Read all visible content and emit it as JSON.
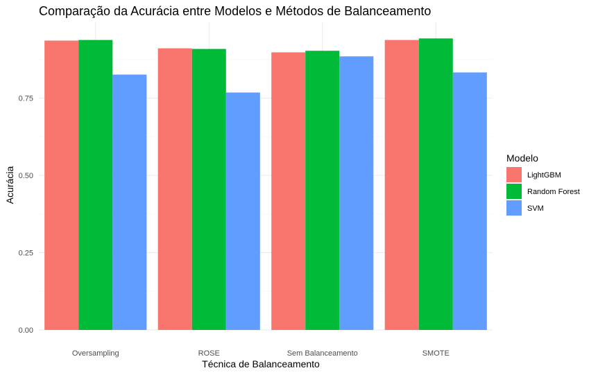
{
  "chart_data": {
    "type": "bar",
    "title": "Comparação da Acurácia entre Modelos e Métodos de Balanceamento",
    "xlabel": "Técnica de Balanceamento",
    "ylabel": "Acurácia",
    "categories": [
      "Oversampling",
      "ROSE",
      "Sem Balanceamento",
      "SMOTE"
    ],
    "series": [
      {
        "name": "LightGBM",
        "color": "#F8766D",
        "values": [
          0.936,
          0.911,
          0.898,
          0.938
        ]
      },
      {
        "name": "Random Forest",
        "color": "#00BA38",
        "values": [
          0.938,
          0.909,
          0.903,
          0.943
        ]
      },
      {
        "name": "SVM",
        "color": "#619CFF",
        "values": [
          0.826,
          0.768,
          0.885,
          0.833
        ]
      }
    ],
    "ylim": [
      0,
      0.95
    ],
    "yticks": [
      0.0,
      0.25,
      0.5,
      0.75
    ],
    "ytick_labels": [
      "0.00",
      "0.25",
      "0.50",
      "0.75"
    ],
    "grid": true,
    "legend": {
      "title": "Modelo",
      "position": "right"
    }
  }
}
